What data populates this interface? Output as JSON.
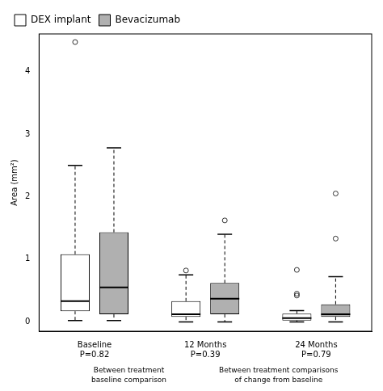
{
  "chart_data": {
    "type": "box",
    "ylabel": "Area (mm²)",
    "ylim": [
      -0.15,
      4.6
    ],
    "yticks": [
      0,
      1,
      2,
      3,
      4
    ],
    "grid": false,
    "legend": "upper left",
    "categories": [
      "Baseline",
      "12 Months",
      "24 Months"
    ],
    "series": [
      {
        "name": "DEX implant",
        "color": "#ffffff",
        "values": [
          {
            "q1": 0.17,
            "median": 0.33,
            "q3": 1.08,
            "whislo": 0.02,
            "whishi": 2.5,
            "fliers": [
              4.47
            ]
          },
          {
            "q1": 0.08,
            "median": 0.12,
            "q3": 0.33,
            "whislo": 0.0,
            "whishi": 0.75,
            "fliers": [
              0.82
            ]
          },
          {
            "q1": 0.02,
            "median": 0.06,
            "q3": 0.13,
            "whislo": 0.0,
            "whishi": 0.18,
            "fliers": [
              0.42,
              0.45,
              0.83
            ]
          }
        ]
      },
      {
        "name": "Bevacizumab",
        "color": "#b0b0b0",
        "values": [
          {
            "q1": 0.12,
            "median": 0.55,
            "q3": 1.43,
            "whislo": 0.02,
            "whishi": 2.78,
            "fliers": []
          },
          {
            "q1": 0.12,
            "median": 0.37,
            "q3": 0.62,
            "whislo": 0.0,
            "whishi": 1.4,
            "fliers": [
              1.62
            ]
          },
          {
            "q1": 0.08,
            "median": 0.12,
            "q3": 0.28,
            "whislo": 0.0,
            "whishi": 0.72,
            "fliers": [
              1.33,
              2.05
            ]
          }
        ]
      }
    ],
    "annotations": [
      {
        "text": "P=0.82",
        "category": "Baseline"
      },
      {
        "text": "P=0.39",
        "category": "12 Months"
      },
      {
        "text": "P=0.79",
        "category": "24 Months"
      }
    ],
    "footnotes": [
      [
        "Between treatment",
        "baseline comparison"
      ],
      [
        "Between treatment comparisons",
        "of change from baseline"
      ]
    ]
  }
}
